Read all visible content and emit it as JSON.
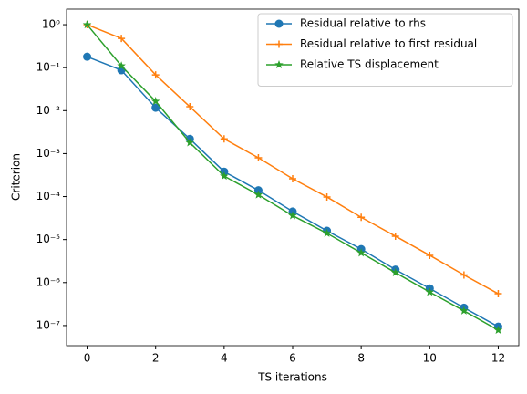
{
  "chart_data": {
    "type": "line",
    "xlabel": "TS iterations",
    "ylabel": "Criterion",
    "x": [
      0,
      1,
      2,
      3,
      4,
      5,
      6,
      7,
      8,
      9,
      10,
      11,
      12
    ],
    "series": [
      {
        "name": "Residual relative to rhs",
        "color": "#1f77b4",
        "marker": "circle",
        "values": [
          0.18,
          0.087,
          0.0117,
          0.0022,
          0.00038,
          0.00014,
          4.5e-05,
          1.6e-05,
          6e-06,
          2e-06,
          7.3e-07,
          2.6e-07,
          9.4e-08
        ]
      },
      {
        "name": "Residual relative to first residual",
        "color": "#ff7f0e",
        "marker": "plus",
        "values": [
          1.0,
          0.48,
          0.068,
          0.0123,
          0.0022,
          0.0008,
          0.00026,
          9.8e-05,
          3.3e-05,
          1.2e-05,
          4.3e-06,
          1.5e-06,
          5.5e-07
        ]
      },
      {
        "name": "Relative TS displacement",
        "color": "#2ca02c",
        "marker": "star",
        "values": [
          1.0,
          0.11,
          0.0165,
          0.0018,
          0.0003,
          0.00011,
          3.6e-05,
          1.4e-05,
          4.9e-06,
          1.7e-06,
          6e-07,
          2.2e-07,
          7.8e-08
        ]
      }
    ],
    "xlim": [
      -0.6,
      12.6
    ],
    "xticks": [
      0,
      2,
      4,
      6,
      8,
      10,
      12
    ],
    "ylim": [
      3.4e-08,
      2.3
    ],
    "yscale": "log",
    "yticks": [
      {
        "value": 1,
        "label": "10⁰"
      },
      {
        "value": 0.1,
        "label": "10⁻¹"
      },
      {
        "value": 0.01,
        "label": "10⁻²"
      },
      {
        "value": 0.001,
        "label": "10⁻³"
      },
      {
        "value": 0.0001,
        "label": "10⁻⁴"
      },
      {
        "value": 1e-05,
        "label": "10⁻⁵"
      },
      {
        "value": 1e-06,
        "label": "10⁻⁶"
      },
      {
        "value": 1e-07,
        "label": "10⁻⁷"
      }
    ],
    "legend": "upper right"
  }
}
